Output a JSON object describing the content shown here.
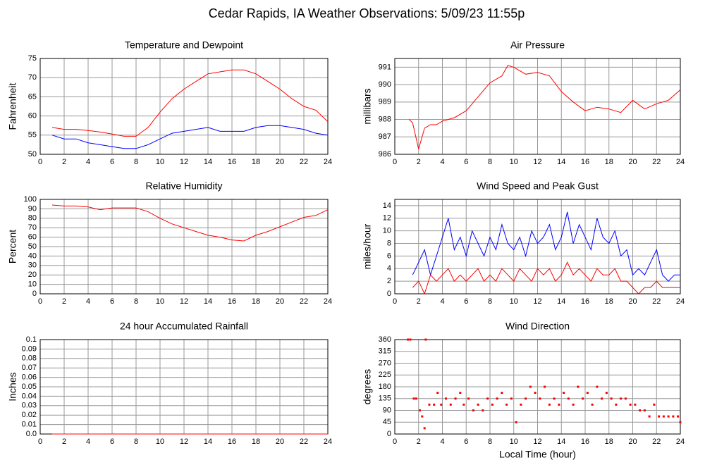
{
  "title": "Cedar Rapids, IA Weather Observations: 5/09/23 11:55p",
  "chart_data": [
    {
      "type": "line",
      "title": "Temperature and Dewpoint",
      "y_label": "Fahrenheit",
      "xlim": [
        0,
        24
      ],
      "xticks": [
        0,
        2,
        4,
        6,
        8,
        10,
        12,
        14,
        16,
        18,
        20,
        22,
        24
      ],
      "ylim": [
        50,
        75
      ],
      "yticks": [
        50,
        55,
        60,
        65,
        70,
        75
      ],
      "grid": true,
      "series": [
        {
          "color": "#ff0000",
          "x": [
            1,
            2,
            3,
            4,
            5,
            6,
            7,
            8,
            9,
            10,
            11,
            12,
            13,
            14,
            15,
            16,
            17,
            18,
            19,
            20,
            21,
            22,
            23,
            24
          ],
          "values": [
            57,
            56.5,
            56.5,
            56.2,
            55.8,
            55.3,
            54.7,
            54.7,
            57,
            61,
            64.5,
            67,
            69,
            71,
            71.5,
            72,
            72,
            71,
            69,
            67,
            64.5,
            62.5,
            61.5,
            58.5
          ]
        },
        {
          "color": "#0000ff",
          "x": [
            1,
            2,
            3,
            4,
            5,
            6,
            7,
            8,
            9,
            10,
            11,
            12,
            13,
            14,
            15,
            16,
            17,
            18,
            19,
            20,
            21,
            22,
            23,
            24
          ],
          "values": [
            55,
            54,
            54,
            53,
            52.5,
            52,
            51.5,
            51.5,
            52.5,
            54,
            55.5,
            56,
            56.5,
            57,
            56,
            56,
            56,
            57,
            57.5,
            57.5,
            57,
            56.5,
            55.5,
            55
          ]
        }
      ]
    },
    {
      "type": "line",
      "title": "Air Pressure",
      "y_label": "millibars",
      "xlim": [
        0,
        24
      ],
      "xticks": [
        0,
        2,
        4,
        6,
        8,
        10,
        12,
        14,
        16,
        18,
        20,
        22,
        24
      ],
      "ylim": [
        986,
        991.5
      ],
      "yticks": [
        986,
        987,
        988,
        989,
        990,
        991
      ],
      "grid": true,
      "series": [
        {
          "color": "#ff0000",
          "x": [
            1.2,
            1.5,
            2,
            2.5,
            3,
            3.5,
            4,
            5,
            6,
            7,
            8,
            9,
            9.5,
            10,
            11,
            12,
            13,
            14,
            15,
            16,
            17,
            18,
            19,
            20,
            21,
            22,
            23,
            24
          ],
          "values": [
            988,
            987.8,
            986.3,
            987.5,
            987.7,
            987.7,
            987.9,
            988.1,
            988.5,
            989.3,
            990.1,
            990.5,
            991.1,
            991,
            990.6,
            990.7,
            990.5,
            989.6,
            989,
            988.5,
            988.7,
            988.6,
            988.4,
            989.1,
            988.6,
            988.9,
            989.1,
            989.7
          ]
        }
      ]
    },
    {
      "type": "line",
      "title": "Relative Humidity",
      "y_label": "Percent",
      "xlim": [
        0,
        24
      ],
      "xticks": [
        0,
        2,
        4,
        6,
        8,
        10,
        12,
        14,
        16,
        18,
        20,
        22,
        24
      ],
      "ylim": [
        0,
        100
      ],
      "yticks": [
        0,
        10,
        20,
        30,
        40,
        50,
        60,
        70,
        80,
        90,
        100
      ],
      "grid": true,
      "series": [
        {
          "color": "#ff0000",
          "x": [
            1,
            2,
            3,
            4,
            5,
            6,
            7,
            8,
            9,
            10,
            11,
            12,
            13,
            14,
            15,
            16,
            17,
            18,
            19,
            20,
            21,
            22,
            23,
            24
          ],
          "values": [
            94,
            93,
            93,
            92,
            89,
            91,
            91,
            91,
            87,
            80,
            74,
            70,
            66,
            62,
            60,
            57,
            56,
            62,
            66,
            71,
            76,
            81,
            83,
            89
          ]
        }
      ]
    },
    {
      "type": "line",
      "title": "Wind Speed and Peak Gust",
      "y_label": "miles/hour",
      "xlim": [
        0,
        24
      ],
      "xticks": [
        0,
        2,
        4,
        6,
        8,
        10,
        12,
        14,
        16,
        18,
        20,
        22,
        24
      ],
      "ylim": [
        0,
        15
      ],
      "yticks": [
        0,
        2,
        4,
        6,
        8,
        10,
        12,
        14
      ],
      "grid": true,
      "series": [
        {
          "color": "#0000ff",
          "x": [
            1.5,
            2,
            2.5,
            3,
            3.5,
            4,
            4.5,
            5,
            5.5,
            6,
            6.5,
            7,
            7.5,
            8,
            8.5,
            9,
            9.5,
            10,
            10.5,
            11,
            11.5,
            12,
            12.5,
            13,
            13.5,
            14,
            14.5,
            15,
            15.5,
            16,
            16.5,
            17,
            17.5,
            18,
            18.5,
            19,
            19.5,
            20,
            20.5,
            21,
            21.5,
            22,
            22.5,
            23,
            23.5,
            24
          ],
          "values": [
            3,
            5,
            7,
            3,
            6,
            9,
            12,
            7,
            9,
            6,
            10,
            8,
            6,
            9,
            7,
            11,
            8,
            7,
            9,
            6,
            10,
            8,
            9,
            11,
            7,
            9,
            13,
            8,
            11,
            9,
            7,
            12,
            9,
            8,
            10,
            6,
            7,
            3,
            4,
            3,
            5,
            7,
            3,
            2,
            3,
            3
          ]
        },
        {
          "color": "#ff0000",
          "x": [
            1.5,
            2,
            2.5,
            3,
            3.5,
            4,
            4.5,
            5,
            5.5,
            6,
            6.5,
            7,
            7.5,
            8,
            8.5,
            9,
            9.5,
            10,
            10.5,
            11,
            11.5,
            12,
            12.5,
            13,
            13.5,
            14,
            14.5,
            15,
            15.5,
            16,
            16.5,
            17,
            17.5,
            18,
            18.5,
            19,
            19.5,
            20,
            20.5,
            21,
            21.5,
            22,
            22.5,
            23,
            23.5,
            24
          ],
          "values": [
            1,
            2,
            0,
            3,
            2,
            3,
            4,
            2,
            3,
            2,
            3,
            4,
            2,
            3,
            2,
            4,
            3,
            2,
            4,
            3,
            2,
            4,
            3,
            4,
            2,
            3,
            5,
            3,
            4,
            3,
            2,
            4,
            3,
            3,
            4,
            2,
            2,
            1,
            0,
            1,
            1,
            2,
            1,
            1,
            1,
            1
          ]
        }
      ]
    },
    {
      "type": "line",
      "title": "24 hour Accumulated Rainfall",
      "y_label": "Inches",
      "xlim": [
        0,
        24
      ],
      "xticks": [
        0,
        2,
        4,
        6,
        8,
        10,
        12,
        14,
        16,
        18,
        20,
        22,
        24
      ],
      "ylim": [
        0,
        0.1
      ],
      "yticks": [
        {
          "value": 0,
          "label": "0.0"
        },
        0.01,
        0.02,
        0.03,
        0.04,
        0.05,
        0.06,
        0.07,
        0.08,
        0.09,
        0.1
      ],
      "grid": true,
      "series": [
        {
          "color": "#ff0000",
          "x": [
            1,
            24
          ],
          "values": [
            0,
            0
          ]
        }
      ]
    },
    {
      "type": "scatter",
      "title": "Wind Direction",
      "y_label": "degrees",
      "x_label": "Local Time (hour)",
      "xlim": [
        0,
        24
      ],
      "xticks": [
        0,
        2,
        4,
        6,
        8,
        10,
        12,
        14,
        16,
        18,
        20,
        22,
        24
      ],
      "ylim": [
        0,
        360
      ],
      "yticks": [
        0,
        45,
        90,
        135,
        180,
        225,
        270,
        315,
        360
      ],
      "grid": true,
      "series": [
        {
          "color": "#ff0000",
          "x": [
            1.1,
            1.3,
            1.6,
            1.8,
            2.1,
            2.3,
            2.5,
            2.6,
            2.9,
            3.3,
            3.6,
            3.9,
            4.3,
            4.7,
            5.1,
            5.5,
            5.8,
            6.2,
            6.6,
            7.0,
            7.4,
            7.8,
            8.2,
            8.6,
            9.0,
            9.4,
            9.8,
            10.2,
            10.6,
            11.0,
            11.4,
            11.8,
            12.2,
            12.6,
            13.0,
            13.4,
            13.8,
            14.2,
            14.6,
            15.0,
            15.4,
            15.8,
            16.2,
            16.6,
            17.0,
            17.4,
            17.8,
            18.2,
            18.6,
            19.0,
            19.4,
            19.8,
            20.2,
            20.6,
            21.0,
            21.4,
            21.8,
            22.2,
            22.6,
            23.0,
            23.4,
            23.8,
            24.0
          ],
          "values": [
            360,
            360,
            135,
            135,
            90,
            67,
            22,
            360,
            112,
            112,
            157,
            112,
            135,
            112,
            135,
            157,
            112,
            135,
            90,
            112,
            90,
            135,
            112,
            135,
            157,
            112,
            135,
            45,
            112,
            135,
            180,
            157,
            135,
            180,
            112,
            135,
            112,
            157,
            135,
            112,
            180,
            135,
            157,
            112,
            180,
            135,
            157,
            135,
            112,
            135,
            135,
            112,
            112,
            90,
            90,
            67,
            112,
            67,
            67,
            67,
            67,
            67,
            45
          ]
        }
      ]
    }
  ]
}
